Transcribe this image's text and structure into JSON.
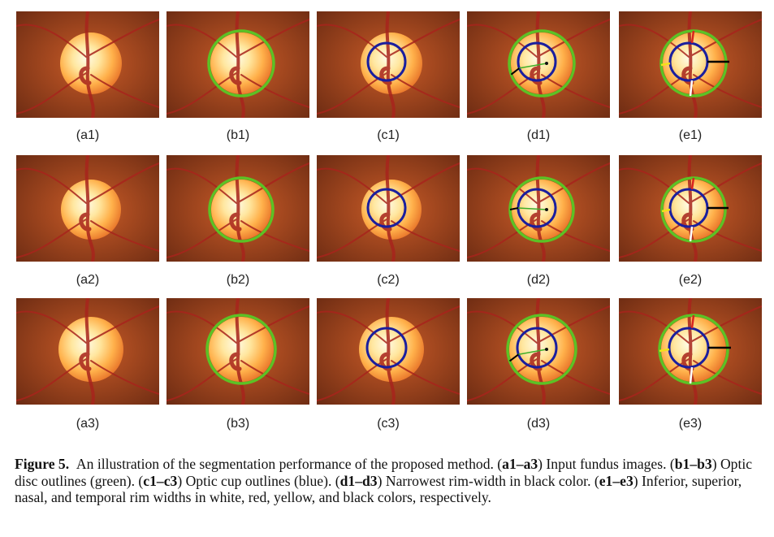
{
  "figure": {
    "rows": [
      [
        "(a1)",
        "(b1)",
        "(c1)",
        "(d1)",
        "(e1)"
      ],
      [
        "(a2)",
        "(b2)",
        "(c2)",
        "(d2)",
        "(e2)"
      ],
      [
        "(a3)",
        "(b3)",
        "(c3)",
        "(d3)",
        "(e3)"
      ]
    ],
    "colors": {
      "background": "#8a3a1c",
      "disc_outline": "#5cc225",
      "cup_outline": "#1a1f9e",
      "rim_narrowest": "#000000",
      "rim_inferior": "#ffffff",
      "rim_superior": "#d8231e",
      "rim_nasal": "#f2e21a",
      "rim_temporal": "#000000"
    }
  },
  "caption": {
    "figure_label": "Figure 5.",
    "t1": "An illustration of the segmentation performance of the proposed method. (",
    "r1": "a1–a3",
    "t2": ") Input fundus images. (",
    "r2": "b1–b3",
    "t3": ") Optic disc outlines (green). (",
    "r3": "c1–c3",
    "t4": ") Optic cup outlines (blue). (",
    "r4": "d1–d3",
    "t5": ") Narrowest rim-width in black color. (",
    "r5": "e1–e3",
    "t6": ") Inferior, superior, nasal, and temporal rim widths in white, red, yellow, and black colors, respectively."
  }
}
